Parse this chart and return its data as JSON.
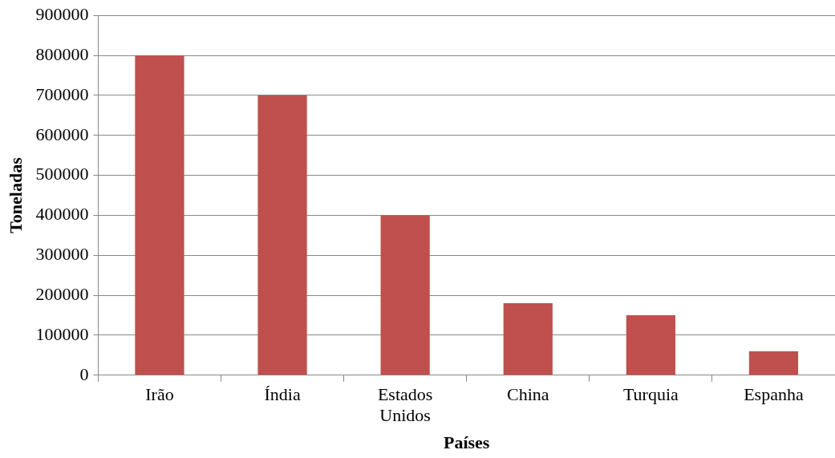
{
  "chart_data": {
    "type": "bar",
    "xlabel": "Países",
    "ylabel": "Toneladas",
    "categories": [
      "Irão",
      "Índia",
      "Estados Unidos",
      "China",
      "Turquia",
      "Espanha"
    ],
    "values": [
      800000,
      700000,
      400000,
      180000,
      150000,
      60000
    ],
    "color": "#c0504d",
    "ylim": [
      0,
      900000
    ],
    "yticks": [
      0,
      100000,
      200000,
      300000,
      400000,
      500000,
      600000,
      700000,
      800000,
      900000
    ],
    "grid": "y",
    "legend": false
  }
}
